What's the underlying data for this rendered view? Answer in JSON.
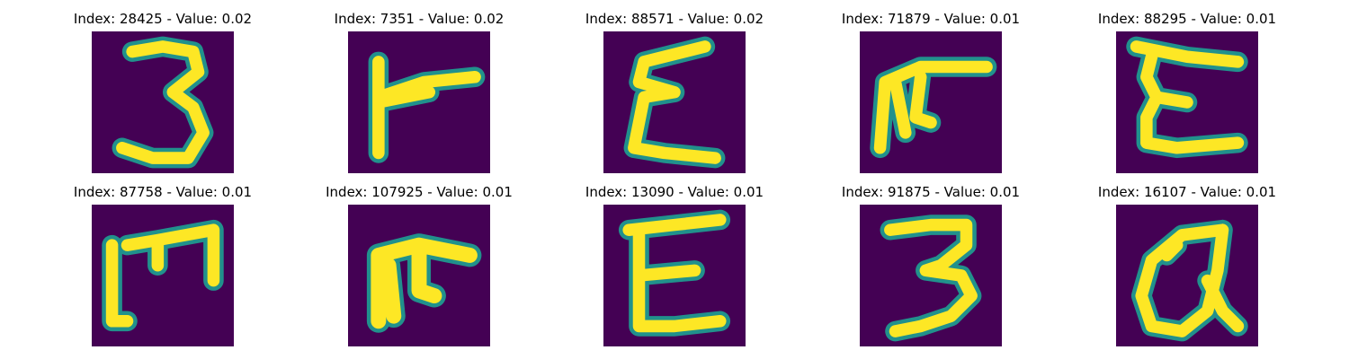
{
  "figure": {
    "panels": [
      {
        "title": "Index: 28425 - Value: 0.02",
        "glyph": "3"
      },
      {
        "title": "Index: 7351 - Value: 0.02",
        "glyph": "handwritten-char"
      },
      {
        "title": "Index: 88571 - Value: 0.02",
        "glyph": "ε"
      },
      {
        "title": "Index: 71879 - Value: 0.01",
        "glyph": "handwritten-char"
      },
      {
        "title": "Index: 88295 - Value: 0.01",
        "glyph": "ε"
      },
      {
        "title": "Index: 87758 - Value: 0.01",
        "glyph": "handwritten-char"
      },
      {
        "title": "Index: 107925 - Value: 0.01",
        "glyph": "handwritten-char"
      },
      {
        "title": "Index: 13090 - Value: 0.01",
        "glyph": "E"
      },
      {
        "title": "Index: 91875 - Value: 0.01",
        "glyph": "3"
      },
      {
        "title": "Index: 16107 - Value: 0.01",
        "glyph": "@"
      }
    ]
  },
  "colors": {
    "background": "#440154",
    "stroke_edge": "#21918c",
    "stroke_core": "#fde725"
  }
}
